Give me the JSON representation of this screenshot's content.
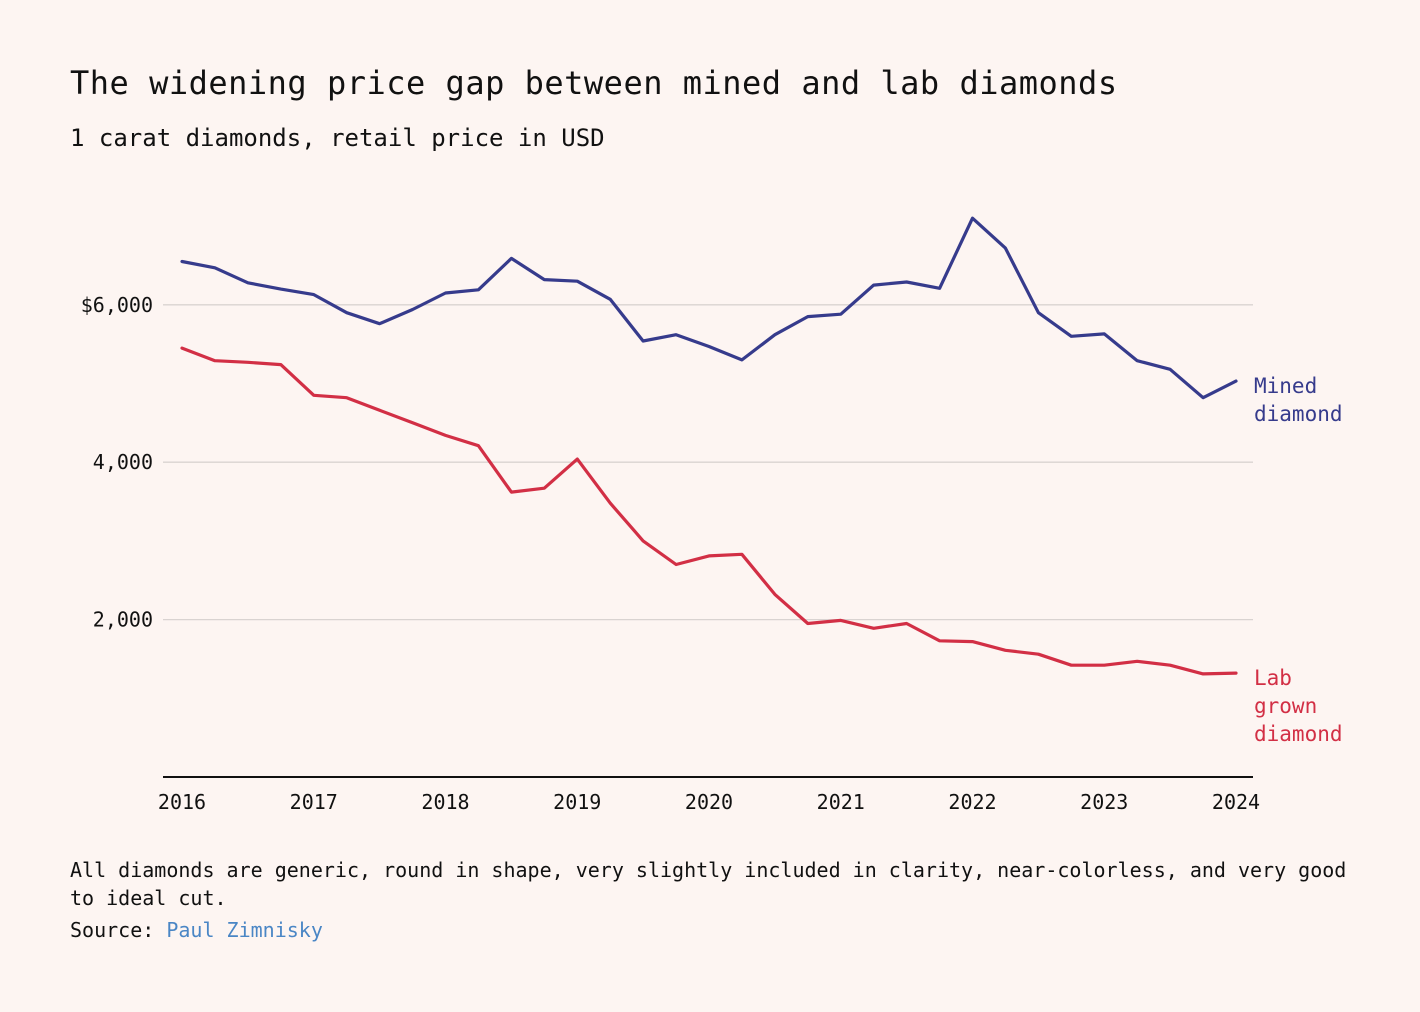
{
  "title": "The widening price gap between mined and lab diamonds",
  "subtitle": "1 carat diamonds, retail price in USD",
  "note": "All diamonds are generic, round in shape, very slightly included in clarity, near-colorless, and very good to ideal cut.",
  "source": {
    "label": "Source:",
    "link_text": "Paul Zimnisky"
  },
  "colors": {
    "background": "#fdf5f2",
    "mined": "#363b8c",
    "lab": "#d22f45",
    "grid": "#d9d3d1",
    "axis": "#111111",
    "link": "#4a86c5"
  },
  "chart_data": {
    "type": "line",
    "title": "The widening price gap between mined and lab diamonds",
    "subtitle": "1 carat diamonds, retail price in USD",
    "xlabel": "",
    "ylabel": "",
    "xlim": [
      2016,
      2024
    ],
    "ylim": [
      0,
      7500
    ],
    "x_ticks": [
      2016,
      2017,
      2018,
      2019,
      2020,
      2021,
      2022,
      2023,
      2024
    ],
    "x_tick_labels": [
      "2016",
      "2017",
      "2018",
      "2019",
      "2020",
      "2021",
      "2022",
      "2023",
      "2024"
    ],
    "y_ticks": [
      2000,
      4000,
      6000
    ],
    "y_tick_labels": [
      "2,000",
      "4,000",
      "$6,000"
    ],
    "grid": true,
    "x": [
      2016,
      2016.25,
      2016.5,
      2016.75,
      2017,
      2017.25,
      2017.5,
      2017.75,
      2018,
      2018.25,
      2018.5,
      2018.75,
      2019,
      2019.25,
      2019.5,
      2019.75,
      2020,
      2020.25,
      2020.5,
      2020.75,
      2021,
      2021.25,
      2021.5,
      2021.75,
      2022,
      2022.25,
      2022.5,
      2022.75,
      2023,
      2023.25,
      2023.5,
      2023.75,
      2024
    ],
    "series": [
      {
        "name": "Mined diamond",
        "label_lines": [
          "Mined",
          "diamond"
        ],
        "color": "#363b8c",
        "values": [
          6550,
          6470,
          6280,
          6200,
          6130,
          5900,
          5760,
          5940,
          6150,
          6190,
          6590,
          6320,
          6300,
          6070,
          5540,
          5620,
          5470,
          5300,
          5620,
          5850,
          5880,
          6250,
          6290,
          6210,
          7100,
          6720,
          5900,
          5600,
          5630,
          5290,
          5180,
          4820,
          5030
        ]
      },
      {
        "name": "Lab grown diamond",
        "label_lines": [
          "Lab",
          "grown",
          "diamond"
        ],
        "color": "#d22f45",
        "values": [
          5450,
          5290,
          5270,
          5240,
          4850,
          4820,
          4660,
          4500,
          4340,
          4210,
          3620,
          3670,
          4040,
          3480,
          3000,
          2700,
          2810,
          2830,
          2320,
          1950,
          1990,
          1890,
          1950,
          1730,
          1720,
          1610,
          1560,
          1420,
          1420,
          1470,
          1420,
          1310,
          1320
        ]
      }
    ]
  }
}
